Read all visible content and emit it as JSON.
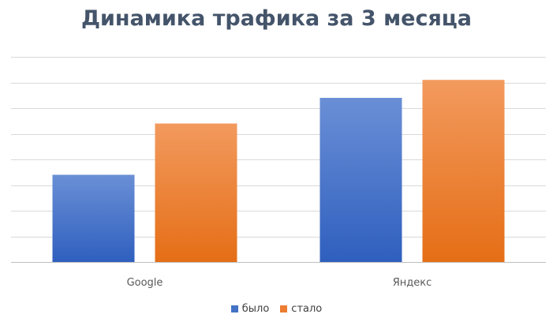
{
  "chart_data": {
    "type": "bar",
    "title": "Динамика трафика за 3 месяца",
    "categories": [
      "Google",
      "Яндекс"
    ],
    "series": [
      {
        "name": "было",
        "values": [
          3.4,
          6.4
        ],
        "color": "#4472c4"
      },
      {
        "name": "стало",
        "values": [
          5.4,
          7.1
        ],
        "color": "#ed7d31"
      }
    ],
    "ylim": [
      0,
      8
    ],
    "grid": true,
    "legend_position": "bottom"
  }
}
